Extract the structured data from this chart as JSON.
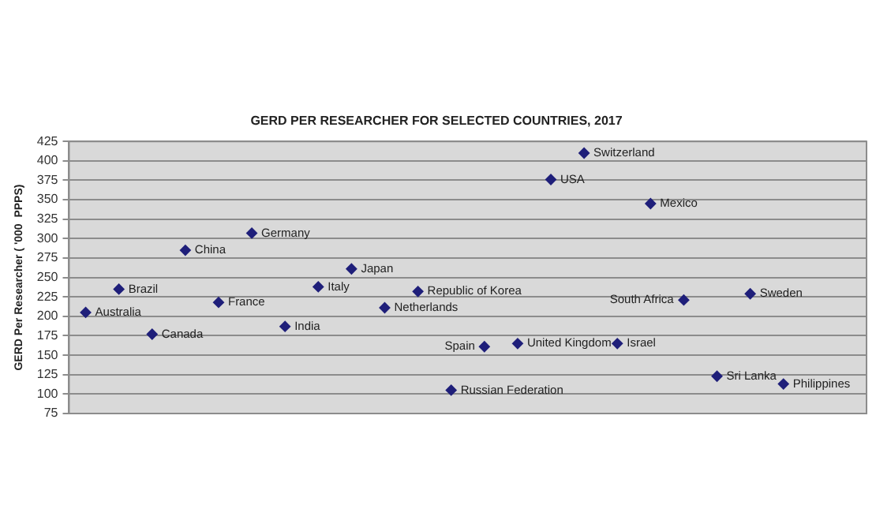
{
  "chart_data": {
    "type": "scatter",
    "title": "GERD PER RESEARCHER FOR SELECTED COUNTRIES, 2017",
    "ylabel": "GERD Per Researcher ( '000  PPPS)",
    "categories": [
      null,
      null,
      null,
      null,
      null,
      null,
      null,
      null,
      null,
      null,
      null,
      null,
      null,
      null,
      null,
      null,
      null,
      null,
      null,
      null,
      null,
      null,
      null,
      null
    ],
    "series": [
      {
        "color": "#1f1f7a",
        "values": [
          205,
          235,
          177,
          285,
          218,
          307,
          187,
          238,
          261,
          211,
          232,
          105,
          161,
          165,
          376,
          410,
          165,
          345,
          221,
          123,
          229,
          113,
          null,
          null
        ]
      }
    ],
    "ylim": [
      75,
      425
    ],
    "yticks": [
      75,
      100,
      125,
      150,
      175,
      200,
      225,
      250,
      275,
      300,
      325,
      350,
      375,
      400,
      425
    ],
    "tick_labels": "y",
    "grid": "y",
    "marker": "diamond",
    "legend": false,
    "annotations": [
      "Australia",
      "Brazil",
      "Canada",
      "China",
      "France",
      "Germany",
      "India",
      "Italy",
      "Japan",
      "Netherlands",
      "Republic of Korea",
      "Russian Federation",
      "Spain",
      "United Kingdom",
      "USA",
      "Switzerland",
      "Israel",
      "Mexico",
      "South Africa",
      "Sri Lanka",
      "Sweden",
      "Philippines"
    ]
  }
}
